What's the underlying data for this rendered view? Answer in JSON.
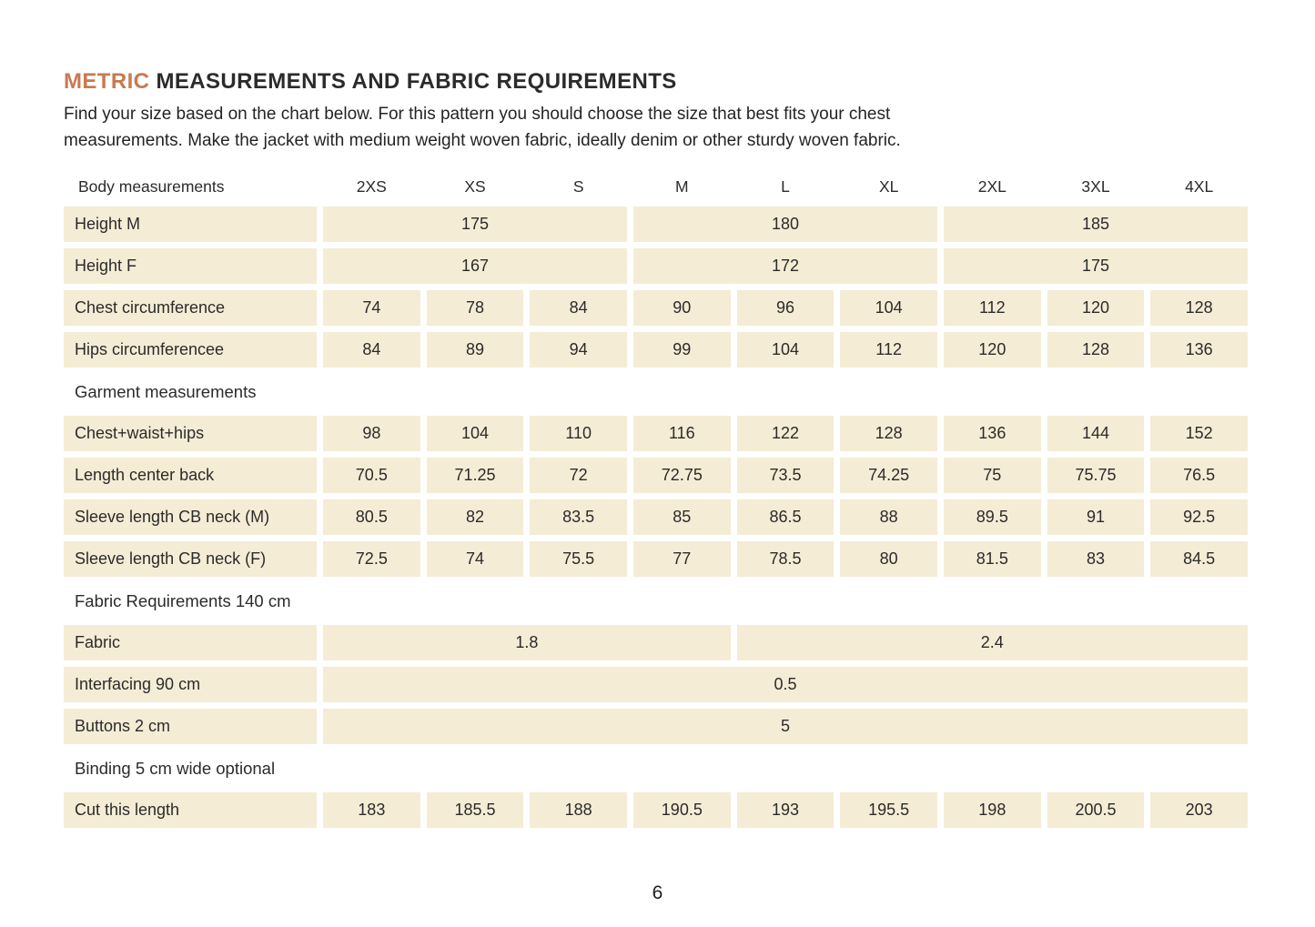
{
  "page": {
    "title_accent": "METRIC",
    "title_rest": " MEASUREMENTS AND FABRIC REQUIREMENTS",
    "intro_line1": "Find your size based on the chart below. For this pattern you should choose the size that best fits your chest",
    "intro_line2": "measurements. Make the jacket with medium weight woven fabric, ideally denim or other sturdy woven fabric.",
    "page_number": "6"
  },
  "colors": {
    "accent": "#c97a50",
    "cell_background": "#f5ecd5",
    "text": "#2b2b2b"
  },
  "table": {
    "header": {
      "label": "Body measurements",
      "sizes": [
        "2XS",
        "XS",
        "S",
        "M",
        "L",
        "XL",
        "2XL",
        "3XL",
        "4XL"
      ]
    },
    "rows": [
      {
        "type": "data",
        "label": "Height M",
        "cells": [
          {
            "value": "175",
            "span": 3
          },
          {
            "value": "180",
            "span": 3
          },
          {
            "value": "185",
            "span": 3
          }
        ]
      },
      {
        "type": "data",
        "label": "Height F",
        "cells": [
          {
            "value": "167",
            "span": 3
          },
          {
            "value": "172",
            "span": 3
          },
          {
            "value": "175",
            "span": 3
          }
        ]
      },
      {
        "type": "data",
        "label": "Chest circumference",
        "cells": [
          {
            "value": "74",
            "span": 1
          },
          {
            "value": "78",
            "span": 1
          },
          {
            "value": "84",
            "span": 1
          },
          {
            "value": "90",
            "span": 1
          },
          {
            "value": "96",
            "span": 1
          },
          {
            "value": "104",
            "span": 1
          },
          {
            "value": "112",
            "span": 1
          },
          {
            "value": "120",
            "span": 1
          },
          {
            "value": "128",
            "span": 1
          }
        ]
      },
      {
        "type": "data",
        "label": "Hips circumferencee",
        "cells": [
          {
            "value": "84",
            "span": 1
          },
          {
            "value": "89",
            "span": 1
          },
          {
            "value": "94",
            "span": 1
          },
          {
            "value": "99",
            "span": 1
          },
          {
            "value": "104",
            "span": 1
          },
          {
            "value": "112",
            "span": 1
          },
          {
            "value": "120",
            "span": 1
          },
          {
            "value": "128",
            "span": 1
          },
          {
            "value": "136",
            "span": 1
          }
        ]
      },
      {
        "type": "section",
        "label": "Garment measurements"
      },
      {
        "type": "data",
        "label": "Chest+waist+hips",
        "cells": [
          {
            "value": "98",
            "span": 1
          },
          {
            "value": "104",
            "span": 1
          },
          {
            "value": "110",
            "span": 1
          },
          {
            "value": "116",
            "span": 1
          },
          {
            "value": "122",
            "span": 1
          },
          {
            "value": "128",
            "span": 1
          },
          {
            "value": "136",
            "span": 1
          },
          {
            "value": "144",
            "span": 1
          },
          {
            "value": "152",
            "span": 1
          }
        ]
      },
      {
        "type": "data",
        "label": "Length center back",
        "cells": [
          {
            "value": "70.5",
            "span": 1
          },
          {
            "value": "71.25",
            "span": 1
          },
          {
            "value": "72",
            "span": 1
          },
          {
            "value": "72.75",
            "span": 1
          },
          {
            "value": "73.5",
            "span": 1
          },
          {
            "value": "74.25",
            "span": 1
          },
          {
            "value": "75",
            "span": 1
          },
          {
            "value": "75.75",
            "span": 1
          },
          {
            "value": "76.5",
            "span": 1
          }
        ]
      },
      {
        "type": "data",
        "label": "Sleeve length CB neck (M)",
        "cells": [
          {
            "value": "80.5",
            "span": 1
          },
          {
            "value": "82",
            "span": 1
          },
          {
            "value": "83.5",
            "span": 1
          },
          {
            "value": "85",
            "span": 1
          },
          {
            "value": "86.5",
            "span": 1
          },
          {
            "value": "88",
            "span": 1
          },
          {
            "value": "89.5",
            "span": 1
          },
          {
            "value": "91",
            "span": 1
          },
          {
            "value": "92.5",
            "span": 1
          }
        ]
      },
      {
        "type": "data",
        "label": "Sleeve length CB neck (F)",
        "cells": [
          {
            "value": "72.5",
            "span": 1
          },
          {
            "value": "74",
            "span": 1
          },
          {
            "value": "75.5",
            "span": 1
          },
          {
            "value": "77",
            "span": 1
          },
          {
            "value": "78.5",
            "span": 1
          },
          {
            "value": "80",
            "span": 1
          },
          {
            "value": "81.5",
            "span": 1
          },
          {
            "value": "83",
            "span": 1
          },
          {
            "value": "84.5",
            "span": 1
          }
        ]
      },
      {
        "type": "section",
        "label": "Fabric Requirements 140 cm"
      },
      {
        "type": "data",
        "label": "Fabric",
        "cells": [
          {
            "value": "1.8",
            "span": 4
          },
          {
            "value": "2.4",
            "span": 5
          }
        ]
      },
      {
        "type": "data",
        "label": "Interfacing 90 cm",
        "cells": [
          {
            "value": "0.5",
            "span": 9
          }
        ]
      },
      {
        "type": "data",
        "label": "Buttons 2 cm",
        "cells": [
          {
            "value": "5",
            "span": 9
          }
        ]
      },
      {
        "type": "section",
        "label": "Binding 5 cm wide optional"
      },
      {
        "type": "data",
        "label": "Cut this length",
        "cells": [
          {
            "value": "183",
            "span": 1
          },
          {
            "value": "185.5",
            "span": 1
          },
          {
            "value": "188",
            "span": 1
          },
          {
            "value": "190.5",
            "span": 1
          },
          {
            "value": "193",
            "span": 1
          },
          {
            "value": "195.5",
            "span": 1
          },
          {
            "value": "198",
            "span": 1
          },
          {
            "value": "200.5",
            "span": 1
          },
          {
            "value": "203",
            "span": 1
          }
        ]
      }
    ]
  }
}
